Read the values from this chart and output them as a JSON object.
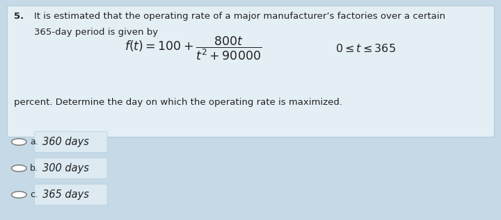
{
  "question_number": "5.",
  "question_text_line1": "It is estimated that the operating rate of a major manufacturer’s factories over a certain",
  "question_text_line2": "365-day period is given by",
  "formula_latex": "$f(t) = 100 +\\dfrac{800t}{t^{2}+90000}$",
  "domain_latex": "$0\\leq t\\leq 365$",
  "question_text_line3": "percent. Determine the day on which the operating rate is maximized.",
  "options": [
    {
      "label": "a.",
      "text": "360 days",
      "highlighted": true
    },
    {
      "label": "b.",
      "text": "300 days",
      "highlighted": true
    },
    {
      "label": "c.",
      "text": "365 days",
      "highlighted": true
    }
  ],
  "bg_outer": "#c5dae6",
  "bg_question_box": "#e4eff5",
  "bg_option_highlight": "#ddeaf2",
  "text_color": "#222222",
  "option_circle_color": "#777777",
  "font_size_body": 9.5,
  "font_size_formula": 12.5,
  "font_size_domain": 11.5,
  "font_size_options": 10.5
}
